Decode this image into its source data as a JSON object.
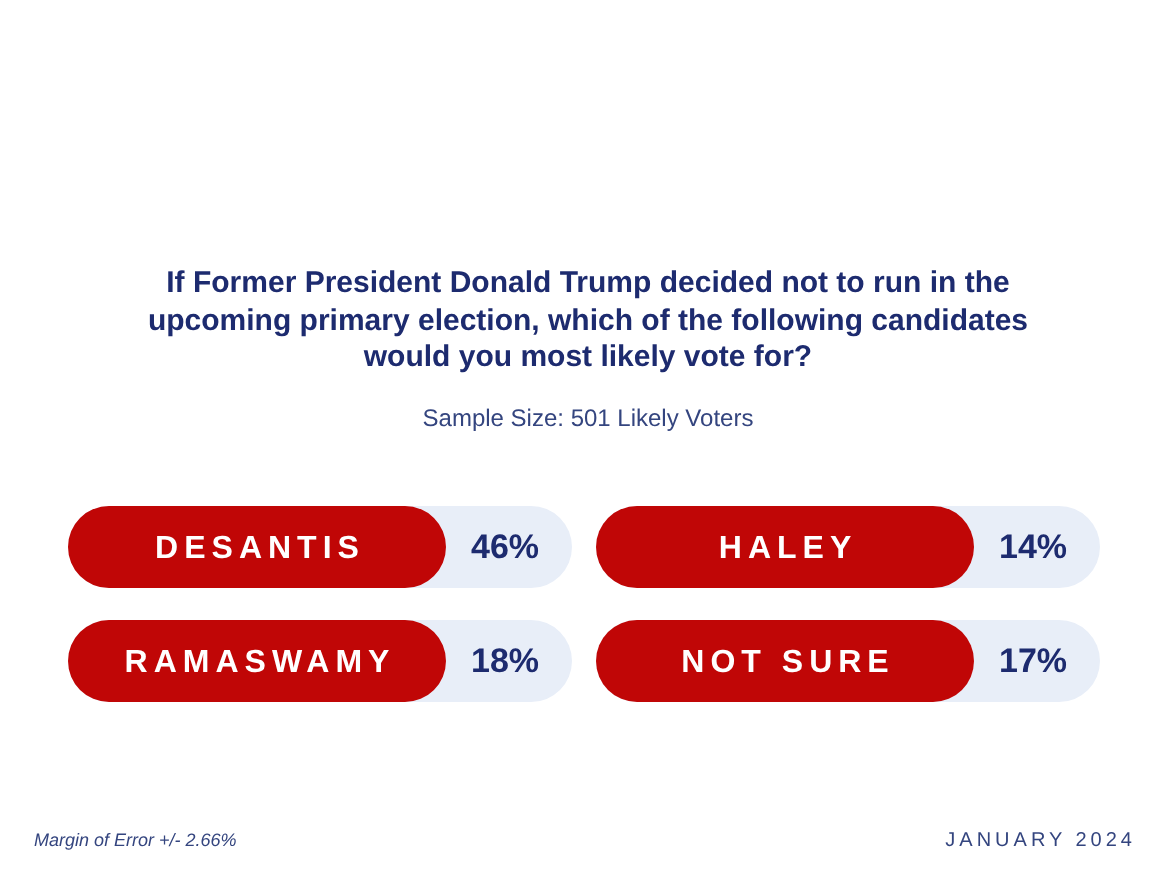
{
  "chart_data": {
    "type": "other",
    "title": "If Former President Donald Trump decided not to run in the upcoming primary election, which of the following candidates would you most likely vote for?",
    "subtitle": "Sample Size: 501 Likely Voters",
    "categories": [
      "DESANTIS",
      "HALEY",
      "RAMASWAMY",
      "NOT SURE"
    ],
    "values": [
      46,
      14,
      18,
      17
    ],
    "value_labels": [
      "46%",
      "14%",
      "18%",
      "17%"
    ],
    "data_labels": false,
    "annotations": [
      "Margin of Error +/- 2.66%",
      "JANUARY 2024"
    ]
  }
}
